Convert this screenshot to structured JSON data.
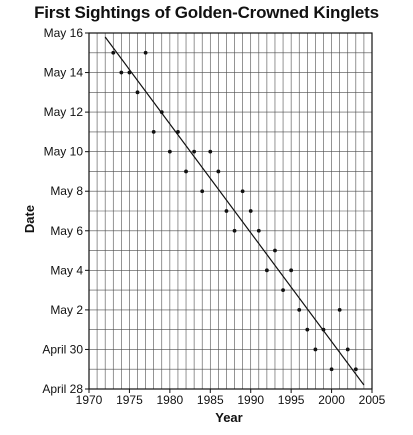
{
  "chart_data": {
    "type": "scatter",
    "title": "First Sightings of Golden-Crowned Kinglets",
    "xlabel": "Year",
    "ylabel": "Date",
    "xlim": [
      1970,
      2005
    ],
    "ylim": [
      -2,
      16
    ],
    "grid": true,
    "x_ticks": [
      {
        "value": 1970,
        "label": "1970"
      },
      {
        "value": 1975,
        "label": "1975"
      },
      {
        "value": 1980,
        "label": "1980"
      },
      {
        "value": 1985,
        "label": "1985"
      },
      {
        "value": 1990,
        "label": "1990"
      },
      {
        "value": 1995,
        "label": "1995"
      },
      {
        "value": 2000,
        "label": "2000"
      },
      {
        "value": 2005,
        "label": "2005"
      }
    ],
    "y_ticks": [
      {
        "value": 16,
        "label": "May 16"
      },
      {
        "value": 14,
        "label": "May 14"
      },
      {
        "value": 12,
        "label": "May 12"
      },
      {
        "value": 10,
        "label": "May 10"
      },
      {
        "value": 8,
        "label": "May 8"
      },
      {
        "value": 6,
        "label": "May 6"
      },
      {
        "value": 4,
        "label": "May 4"
      },
      {
        "value": 2,
        "label": "May 2"
      },
      {
        "value": 0,
        "label": "April 30"
      },
      {
        "value": -2,
        "label": "April 28"
      }
    ],
    "points": [
      {
        "x": 1973,
        "y": 15
      },
      {
        "x": 1974,
        "y": 14
      },
      {
        "x": 1975,
        "y": 14
      },
      {
        "x": 1976,
        "y": 13
      },
      {
        "x": 1977,
        "y": 15
      },
      {
        "x": 1978,
        "y": 11
      },
      {
        "x": 1979,
        "y": 12
      },
      {
        "x": 1980,
        "y": 10
      },
      {
        "x": 1981,
        "y": 11
      },
      {
        "x": 1982,
        "y": 9
      },
      {
        "x": 1983,
        "y": 10
      },
      {
        "x": 1984,
        "y": 8
      },
      {
        "x": 1985,
        "y": 10
      },
      {
        "x": 1986,
        "y": 9
      },
      {
        "x": 1987,
        "y": 7
      },
      {
        "x": 1988,
        "y": 6
      },
      {
        "x": 1989,
        "y": 8
      },
      {
        "x": 1990,
        "y": 7
      },
      {
        "x": 1991,
        "y": 6
      },
      {
        "x": 1992,
        "y": 4
      },
      {
        "x": 1993,
        "y": 5
      },
      {
        "x": 1994,
        "y": 3
      },
      {
        "x": 1995,
        "y": 4
      },
      {
        "x": 1996,
        "y": 2
      },
      {
        "x": 1997,
        "y": 1
      },
      {
        "x": 1998,
        "y": 0
      },
      {
        "x": 1999,
        "y": 1
      },
      {
        "x": 2000,
        "y": -1
      },
      {
        "x": 2001,
        "y": 2
      },
      {
        "x": 2002,
        "y": 0
      },
      {
        "x": 2003,
        "y": -1
      }
    ],
    "trend_line": {
      "x": [
        1972,
        2004
      ],
      "y": [
        15.8,
        -1.8
      ]
    },
    "colors": {
      "points": "#111111",
      "line": "#111111",
      "grid": "#4d4d4d",
      "axis": "#111111"
    }
  }
}
